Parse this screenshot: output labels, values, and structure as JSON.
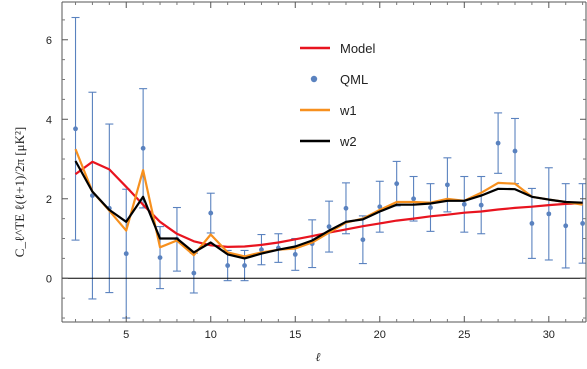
{
  "chart_data": {
    "type": "line",
    "title": "",
    "xlabel": "ℓ",
    "ylabel": "C_ℓ^TE ℓ(ℓ+1)/2π [μK²]",
    "xlim": [
      1.2,
      32.2
    ],
    "ylim": [
      -1.1,
      6.95
    ],
    "xticks": [
      5,
      10,
      15,
      20,
      25,
      30
    ],
    "xtick_labels": [
      "5",
      "10",
      "15",
      "20",
      "25",
      "30"
    ],
    "yticks": [
      0,
      2,
      4,
      6
    ],
    "ytick_labels": [
      "0",
      "2",
      "4",
      "6"
    ],
    "zero_line": true,
    "grid": false,
    "legend_position": "upper-center",
    "x": [
      2,
      3,
      4,
      5,
      6,
      7,
      8,
      9,
      10,
      11,
      12,
      13,
      14,
      15,
      16,
      17,
      18,
      19,
      20,
      21,
      22,
      23,
      24,
      25,
      26,
      27,
      28,
      29,
      30,
      31,
      32
    ],
    "series": [
      {
        "name": "Model",
        "kind": "line",
        "color": "#e8141f",
        "values": [
          2.62,
          2.93,
          2.74,
          2.3,
          1.85,
          1.42,
          1.12,
          0.93,
          0.83,
          0.79,
          0.8,
          0.84,
          0.9,
          0.98,
          1.06,
          1.15,
          1.23,
          1.31,
          1.38,
          1.45,
          1.5,
          1.56,
          1.6,
          1.65,
          1.68,
          1.73,
          1.77,
          1.8,
          1.84,
          1.87,
          1.89
        ]
      },
      {
        "name": "QML",
        "kind": "errorbar",
        "color": "#5a82bf",
        "values": [
          3.76,
          2.08,
          1.76,
          0.62,
          3.27,
          0.52,
          0.98,
          0.13,
          1.64,
          0.32,
          0.32,
          0.72,
          0.76,
          0.6,
          0.87,
          1.3,
          1.76,
          0.97,
          1.8,
          2.38,
          2.0,
          1.78,
          2.35,
          1.86,
          1.84,
          3.4,
          3.2,
          1.38,
          1.62,
          1.32,
          1.38
        ],
        "errors": [
          2.8,
          2.6,
          2.12,
          1.62,
          1.5,
          0.78,
          0.8,
          0.5,
          0.5,
          0.38,
          0.38,
          0.38,
          0.36,
          0.4,
          0.6,
          0.64,
          0.64,
          0.6,
          0.64,
          0.56,
          0.56,
          0.6,
          0.68,
          0.7,
          0.72,
          0.76,
          0.82,
          0.88,
          1.16,
          1.06,
          1.0
        ]
      },
      {
        "name": "w1",
        "kind": "line",
        "color": "#f7901e",
        "values": [
          3.25,
          2.18,
          1.7,
          1.2,
          2.72,
          0.78,
          0.95,
          0.58,
          1.1,
          0.65,
          0.55,
          0.65,
          0.72,
          0.75,
          0.9,
          1.15,
          1.4,
          1.5,
          1.72,
          1.92,
          1.92,
          1.9,
          2.0,
          1.95,
          2.15,
          2.4,
          2.38,
          2.05,
          1.98,
          1.92,
          1.85
        ]
      },
      {
        "name": "w2",
        "kind": "line",
        "color": "#000000",
        "values": [
          2.95,
          2.18,
          1.72,
          1.42,
          2.05,
          1.0,
          1.0,
          0.65,
          0.9,
          0.6,
          0.5,
          0.62,
          0.72,
          0.8,
          0.95,
          1.2,
          1.42,
          1.48,
          1.68,
          1.85,
          1.85,
          1.88,
          1.95,
          1.95,
          2.08,
          2.25,
          2.24,
          2.05,
          1.98,
          1.92,
          1.9
        ]
      }
    ]
  }
}
